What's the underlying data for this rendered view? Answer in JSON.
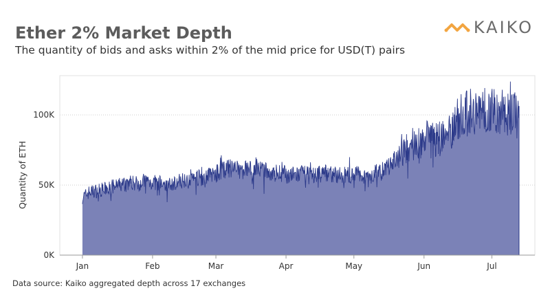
{
  "header": {
    "title": "Ether 2% Market Depth",
    "subtitle": "The quantity of bids and asks within 2% of the mid price for USD(T) pairs"
  },
  "logo": {
    "text": "KAIKO",
    "icon": "kaiko-chain-icon",
    "color": "#f2a541"
  },
  "footer": {
    "source": "Data source: Kaiko aggregated depth across 17 exchanges"
  },
  "colors": {
    "area_fill": "#7b82b7",
    "line": "#2c3a8a",
    "grid": "#b0b0b0"
  },
  "chart_data": {
    "type": "area",
    "title": "Ether 2% Market Depth",
    "subtitle": "The quantity of bids and asks within 2% of the mid price for USD(T) pairs",
    "ylabel": "Quantity of ETH",
    "xlabel": "",
    "ylim": [
      0,
      120000
    ],
    "y_ticks": [
      {
        "value": 0,
        "label": "0K"
      },
      {
        "value": 50000,
        "label": "50K"
      },
      {
        "value": 100000,
        "label": "100K"
      }
    ],
    "x_ticks": [
      {
        "day": 0,
        "label": "Jan"
      },
      {
        "day": 31,
        "label": "Feb"
      },
      {
        "day": 59,
        "label": "Mar"
      },
      {
        "day": 90,
        "label": "Apr"
      },
      {
        "day": 120,
        "label": "May"
      },
      {
        "day": 151,
        "label": "Jun"
      },
      {
        "day": 181,
        "label": "Jul"
      }
    ],
    "xlim_days": [
      -10,
      200
    ],
    "series": [
      {
        "name": "",
        "x_day": [
          0,
          3,
          7,
          10,
          14,
          17,
          21,
          24,
          28,
          31,
          35,
          38,
          42,
          45,
          49,
          52,
          56,
          59,
          61,
          63,
          66,
          70,
          73,
          77,
          80,
          84,
          87,
          91,
          94,
          98,
          101,
          105,
          108,
          112,
          115,
          119,
          122,
          126,
          129,
          133,
          136,
          140,
          143,
          145,
          147,
          150,
          152,
          154,
          157,
          161,
          164,
          166,
          168,
          171,
          175,
          178,
          182,
          185,
          189,
          192,
          193
        ],
        "value": [
          41000,
          45000,
          46000,
          47000,
          49000,
          50000,
          52000,
          51000,
          53000,
          52000,
          51000,
          50000,
          52000,
          54000,
          56000,
          55000,
          57000,
          58000,
          60000,
          61000,
          62000,
          60000,
          62000,
          61000,
          60000,
          58000,
          59000,
          57000,
          57000,
          58000,
          56000,
          58000,
          59000,
          57000,
          57000,
          57000,
          58000,
          56000,
          58000,
          60000,
          64000,
          70000,
          74000,
          78000,
          80000,
          81000,
          84000,
          82000,
          83000,
          86000,
          92000,
          97000,
          101000,
          103000,
          102000,
          103000,
          104000,
          102000,
          101000,
          103000,
          104000
        ]
      }
    ],
    "y_spike_range": "approx. 40K–121K"
  }
}
